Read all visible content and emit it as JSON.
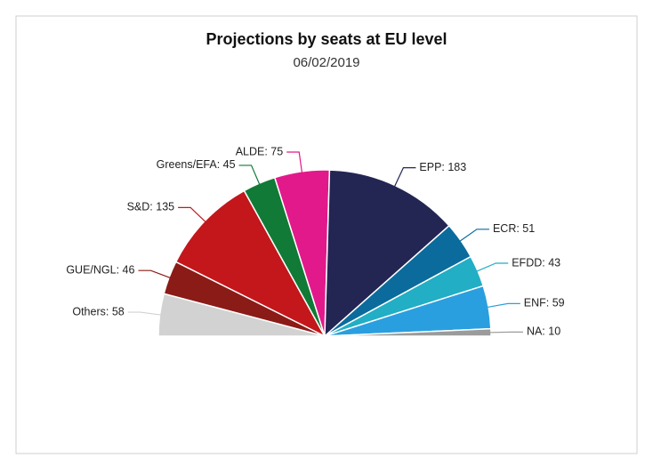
{
  "chart_data": {
    "type": "pie",
    "semicircle": true,
    "title": "Projections by seats at EU level",
    "subtitle": "06/02/2019",
    "categories": [
      "Others",
      "GUE/NGL",
      "S&D",
      "Greens/EFA",
      "ALDE",
      "EPP",
      "ECR",
      "EFDD",
      "ENF",
      "NA"
    ],
    "values": [
      58,
      46,
      135,
      45,
      75,
      183,
      51,
      43,
      59,
      10
    ],
    "value_labels": [
      "Others: 58",
      "GUE/NGL: 46",
      "S&D: 135",
      "Greens/EFA: 45",
      "ALDE: 75",
      "EPP: 183",
      "ECR: 51",
      "EFDD: 43",
      "ENF: 59",
      "NA: 10"
    ],
    "colors": [
      "#d2d2d2",
      "#8a1b17",
      "#c3171b",
      "#117a36",
      "#e2198b",
      "#232553",
      "#0b6b9c",
      "#22aec4",
      "#2a9fdf",
      "#9b9b9b"
    ]
  }
}
